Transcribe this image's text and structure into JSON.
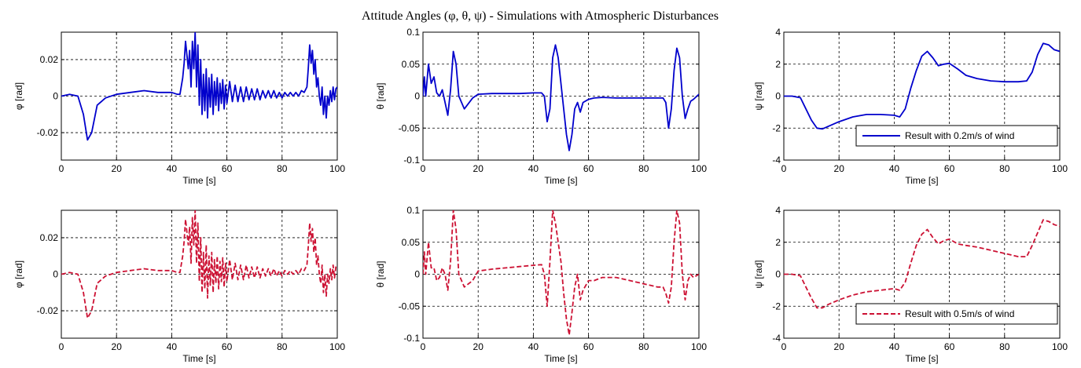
{
  "figure": {
    "title": "Attitude Angles (φ, θ, ψ) - Simulations with Atmospheric Disturbances",
    "colors": {
      "series_02": "#0000cc",
      "series_05": "#cc1133"
    }
  },
  "chart_data": [
    {
      "type": "line",
      "row": 0,
      "col": 0,
      "xlabel": "Time [s]",
      "ylabel": "φ [rad]",
      "xlim": [
        0,
        100
      ],
      "ylim": [
        -0.035,
        0.035
      ],
      "xticks": [
        0,
        20,
        40,
        60,
        80,
        100
      ],
      "yticks": [
        -0.02,
        0,
        0.02
      ],
      "ytick_labels": [
        "-0.02",
        "0",
        "0.02"
      ],
      "grid": true,
      "legend": null,
      "series": [
        {
          "color": "#0000cc",
          "dash": false,
          "x": [
            0,
            3,
            6,
            8,
            9.5,
            11,
            13,
            16,
            20,
            25,
            30,
            35,
            40,
            42,
            43,
            44,
            44.5,
            45,
            46,
            46.5,
            47,
            47.5,
            48,
            48.5,
            49,
            49.5,
            50,
            50.5,
            51,
            51.5,
            52,
            52.5,
            53,
            53.5,
            54,
            54.5,
            55,
            55.5,
            56,
            56.5,
            57,
            57.5,
            58,
            58.5,
            59,
            59.5,
            60,
            61,
            62,
            63,
            64,
            65,
            66,
            67,
            68,
            69,
            70,
            71,
            72,
            73,
            74,
            75,
            76,
            77,
            78,
            79,
            80,
            81,
            82,
            83,
            84,
            85,
            86,
            87,
            88,
            89,
            89.5,
            90,
            90.5,
            91,
            91.5,
            92,
            92.5,
            93,
            93.5,
            94,
            94.5,
            95,
            95.5,
            96,
            96.5,
            97,
            97.5,
            98,
            98.5,
            99,
            99.5,
            100
          ],
          "y": [
            0,
            0.001,
            0,
            -0.01,
            -0.024,
            -0.02,
            -0.005,
            -0.001,
            0.001,
            0.002,
            0.003,
            0.002,
            0.002,
            0.001,
            0.001,
            0.01,
            0.018,
            0.03,
            0.015,
            0.025,
            0.005,
            0.03,
            0.015,
            0.035,
            0.005,
            0.028,
            -0.005,
            0.02,
            -0.01,
            0.012,
            -0.008,
            0.015,
            -0.012,
            0.01,
            -0.006,
            0.012,
            -0.01,
            0.008,
            -0.005,
            0.01,
            -0.008,
            0.007,
            -0.004,
            0.009,
            -0.007,
            0.006,
            -0.004,
            0.008,
            -0.003,
            0.006,
            -0.003,
            0.005,
            -0.003,
            0.005,
            -0.002,
            0.004,
            -0.002,
            0.004,
            -0.002,
            0.003,
            -0.001,
            0.003,
            -0.001,
            0.003,
            -0.001,
            0.002,
            -0.001,
            0.002,
            0,
            0.002,
            0,
            0.002,
            0,
            0.003,
            0.002,
            0.005,
            0.015,
            0.028,
            0.018,
            0.025,
            0.012,
            0.02,
            0.005,
            0.01,
            0,
            -0.005,
            0.005,
            -0.01,
            0,
            -0.012,
            0,
            -0.005,
            0.003,
            -0.003,
            0.005,
            -0.002,
            0.004,
            0.005
          ]
        }
      ]
    },
    {
      "type": "line",
      "row": 0,
      "col": 1,
      "xlabel": "Time [s]",
      "ylabel": "θ [rad]",
      "xlim": [
        0,
        100
      ],
      "ylim": [
        -0.1,
        0.1
      ],
      "xticks": [
        0,
        20,
        40,
        60,
        80,
        100
      ],
      "yticks": [
        -0.1,
        -0.05,
        0,
        0.05,
        0.1
      ],
      "ytick_labels": [
        "-0.1",
        "-0.05",
        "0",
        "0.05",
        "0.1"
      ],
      "grid": true,
      "legend": null,
      "series": [
        {
          "color": "#0000cc",
          "dash": false,
          "x": [
            0,
            0.5,
            1,
            2,
            3,
            4,
            5,
            6,
            7,
            8,
            9,
            10,
            11,
            12,
            13,
            15,
            18,
            20,
            25,
            30,
            35,
            40,
            43,
            44,
            45,
            46,
            47,
            48,
            49,
            50,
            51,
            52,
            53,
            54,
            55,
            56,
            57,
            58,
            60,
            62,
            65,
            70,
            75,
            80,
            85,
            87,
            88,
            89,
            90,
            91,
            92,
            93,
            94,
            95,
            96,
            97,
            98,
            100
          ],
          "y": [
            0,
            0.03,
            0,
            0.05,
            0.02,
            0.03,
            0.005,
            0,
            0.01,
            -0.01,
            -0.03,
            0.01,
            0.07,
            0.05,
            0,
            -0.02,
            -0.003,
            0.003,
            0.004,
            0.004,
            0.004,
            0.005,
            0.005,
            0,
            -0.04,
            -0.02,
            0.06,
            0.08,
            0.06,
            0.02,
            -0.02,
            -0.06,
            -0.085,
            -0.06,
            -0.02,
            -0.01,
            -0.025,
            -0.01,
            -0.005,
            -0.003,
            -0.002,
            -0.003,
            -0.003,
            -0.003,
            -0.003,
            -0.003,
            -0.01,
            -0.05,
            -0.02,
            0.04,
            0.075,
            0.06,
            0,
            -0.035,
            -0.02,
            -0.008,
            -0.005,
            0.003
          ]
        }
      ]
    },
    {
      "type": "line",
      "row": 0,
      "col": 2,
      "xlabel": "Time [s]",
      "ylabel": "ψ [rad]",
      "xlim": [
        0,
        100
      ],
      "ylim": [
        -4,
        4
      ],
      "xticks": [
        0,
        20,
        40,
        60,
        80,
        100
      ],
      "yticks": [
        -4,
        -2,
        0,
        2,
        4
      ],
      "ytick_labels": [
        "-4",
        "-2",
        "0",
        "2",
        "4"
      ],
      "grid": true,
      "legend": {
        "label": "Result with 0.2m/s of wind",
        "placement": "lower-right"
      },
      "series": [
        {
          "color": "#0000cc",
          "dash": false,
          "x": [
            0,
            3,
            6,
            8,
            10,
            12,
            14,
            16,
            20,
            25,
            30,
            35,
            40,
            42,
            44,
            46,
            48,
            50,
            52,
            54,
            56,
            58,
            60,
            63,
            66,
            70,
            75,
            80,
            85,
            88,
            90,
            92,
            94,
            96,
            98,
            100
          ],
          "y": [
            0,
            0,
            -0.1,
            -0.8,
            -1.5,
            -2.0,
            -2.05,
            -1.9,
            -1.6,
            -1.3,
            -1.15,
            -1.15,
            -1.2,
            -1.3,
            -0.8,
            0.5,
            1.6,
            2.5,
            2.8,
            2.4,
            1.9,
            2.0,
            2.05,
            1.7,
            1.3,
            1.1,
            0.95,
            0.9,
            0.9,
            0.95,
            1.5,
            2.6,
            3.3,
            3.2,
            2.9,
            2.8
          ]
        }
      ]
    },
    {
      "type": "line",
      "row": 1,
      "col": 0,
      "xlabel": "Time [s]",
      "ylabel": "φ [rad]",
      "xlim": [
        0,
        100
      ],
      "ylim": [
        -0.035,
        0.035
      ],
      "xticks": [
        0,
        20,
        40,
        60,
        80,
        100
      ],
      "yticks": [
        -0.02,
        0,
        0.02
      ],
      "ytick_labels": [
        "-0.02",
        "0",
        "0.02"
      ],
      "grid": true,
      "legend": null,
      "series": [
        {
          "color": "#cc1133",
          "dash": true,
          "x": [
            0,
            3,
            6,
            8,
            9.5,
            11,
            13,
            16,
            20,
            25,
            30,
            35,
            40,
            42,
            43,
            44,
            44.5,
            45,
            46,
            46.5,
            47,
            47.5,
            48,
            48.5,
            49,
            49.5,
            50,
            50.5,
            51,
            51.5,
            52,
            52.5,
            53,
            53.5,
            54,
            54.5,
            55,
            55.5,
            56,
            56.5,
            57,
            57.5,
            58,
            58.5,
            59,
            59.5,
            60,
            61,
            62,
            63,
            64,
            65,
            66,
            67,
            68,
            69,
            70,
            71,
            72,
            73,
            74,
            75,
            76,
            77,
            78,
            79,
            80,
            81,
            82,
            83,
            84,
            85,
            86,
            87,
            88,
            89,
            89.5,
            90,
            90.5,
            91,
            91.5,
            92,
            92.5,
            93,
            93.5,
            94,
            94.5,
            95,
            95.5,
            96,
            96.5,
            97,
            97.5,
            98,
            98.5,
            99,
            99.5,
            100
          ],
          "y": [
            0,
            0.001,
            0,
            -0.01,
            -0.024,
            -0.02,
            -0.005,
            -0.001,
            0.001,
            0.002,
            0.003,
            0.002,
            0.002,
            0.001,
            0.001,
            0.01,
            0.018,
            0.03,
            0.016,
            0.026,
            0.006,
            0.031,
            0.016,
            0.035,
            0.006,
            0.028,
            -0.004,
            0.02,
            -0.01,
            0.012,
            -0.008,
            0.016,
            -0.013,
            0.01,
            -0.006,
            0.012,
            -0.01,
            0.008,
            -0.005,
            0.01,
            -0.008,
            0.007,
            -0.004,
            0.009,
            -0.007,
            0.006,
            -0.004,
            0.008,
            -0.003,
            0.006,
            -0.003,
            0.005,
            -0.003,
            0.005,
            -0.002,
            0.004,
            -0.002,
            0.004,
            -0.002,
            0.003,
            -0.001,
            0.003,
            -0.001,
            0.003,
            -0.001,
            0.002,
            -0.001,
            0.002,
            0,
            0.002,
            0,
            0.002,
            0,
            0.003,
            0.002,
            0.005,
            0.015,
            0.028,
            0.018,
            0.025,
            0.012,
            0.02,
            0.005,
            0.01,
            0,
            -0.005,
            0.005,
            -0.01,
            0,
            -0.012,
            0,
            -0.005,
            0.003,
            -0.003,
            0.005,
            -0.002,
            0.004,
            0.005
          ]
        }
      ]
    },
    {
      "type": "line",
      "row": 1,
      "col": 1,
      "xlabel": "Time [s]",
      "ylabel": "θ [rad]",
      "xlim": [
        0,
        100
      ],
      "ylim": [
        -0.1,
        0.1
      ],
      "xticks": [
        0,
        20,
        40,
        60,
        80,
        100
      ],
      "yticks": [
        -0.1,
        -0.05,
        0,
        0.05,
        0.1
      ],
      "ytick_labels": [
        "-0.1",
        "-0.05",
        "0",
        "0.05",
        "0.1"
      ],
      "grid": true,
      "legend": null,
      "series": [
        {
          "color": "#cc1133",
          "dash": true,
          "x": [
            0,
            0.5,
            1,
            2,
            3,
            4,
            5,
            6,
            7,
            8,
            9,
            10,
            11,
            12,
            13,
            15,
            18,
            20,
            25,
            30,
            35,
            40,
            43,
            44,
            45,
            46,
            47,
            48,
            49,
            50,
            51,
            52,
            53,
            54,
            55,
            56,
            57,
            58,
            60,
            62,
            65,
            70,
            75,
            80,
            85,
            87,
            88,
            89,
            90,
            91,
            92,
            93,
            94,
            95,
            96,
            97,
            98,
            100
          ],
          "y": [
            0,
            0.035,
            0,
            0.05,
            0.01,
            0.01,
            -0.01,
            -0.005,
            0.01,
            0,
            -0.025,
            0.02,
            0.1,
            0.07,
            0,
            -0.02,
            -0.01,
            0.005,
            0.008,
            0.01,
            0.012,
            0.014,
            0.015,
            0,
            -0.05,
            0.02,
            0.1,
            0.08,
            0.05,
            0.02,
            -0.03,
            -0.07,
            -0.095,
            -0.06,
            -0.02,
            0,
            -0.04,
            -0.025,
            -0.01,
            -0.01,
            -0.005,
            -0.005,
            -0.01,
            -0.015,
            -0.02,
            -0.02,
            -0.03,
            -0.045,
            -0.02,
            0.05,
            0.1,
            0.08,
            0,
            -0.04,
            -0.01,
            0,
            -0.005,
            0
          ]
        }
      ]
    },
    {
      "type": "line",
      "row": 1,
      "col": 2,
      "xlabel": "Time [s]",
      "ylabel": "ψ [rad]",
      "xlim": [
        0,
        100
      ],
      "ylim": [
        -4,
        4
      ],
      "xticks": [
        0,
        20,
        40,
        60,
        80,
        100
      ],
      "yticks": [
        -4,
        -2,
        0,
        2,
        4
      ],
      "ytick_labels": [
        "-4",
        "-2",
        "0",
        "2",
        "4"
      ],
      "grid": true,
      "legend": {
        "label": "Result with 0.5m/s of wind",
        "placement": "lower-right"
      },
      "series": [
        {
          "color": "#cc1133",
          "dash": true,
          "x": [
            0,
            3,
            6,
            8,
            10,
            12,
            14,
            16,
            20,
            25,
            30,
            35,
            40,
            42,
            44,
            46,
            48,
            50,
            52,
            54,
            56,
            58,
            60,
            63,
            66,
            70,
            75,
            80,
            85,
            88,
            90,
            92,
            94,
            96,
            98,
            100
          ],
          "y": [
            0,
            0,
            -0.1,
            -0.8,
            -1.5,
            -2.1,
            -2.1,
            -1.9,
            -1.6,
            -1.3,
            -1.1,
            -1.0,
            -0.9,
            -1.0,
            -0.5,
            0.7,
            1.8,
            2.5,
            2.8,
            2.3,
            1.9,
            2.1,
            2.2,
            1.9,
            1.8,
            1.7,
            1.5,
            1.3,
            1.1,
            1.1,
            1.8,
            2.6,
            3.4,
            3.3,
            3.1,
            3.0
          ]
        }
      ]
    }
  ]
}
